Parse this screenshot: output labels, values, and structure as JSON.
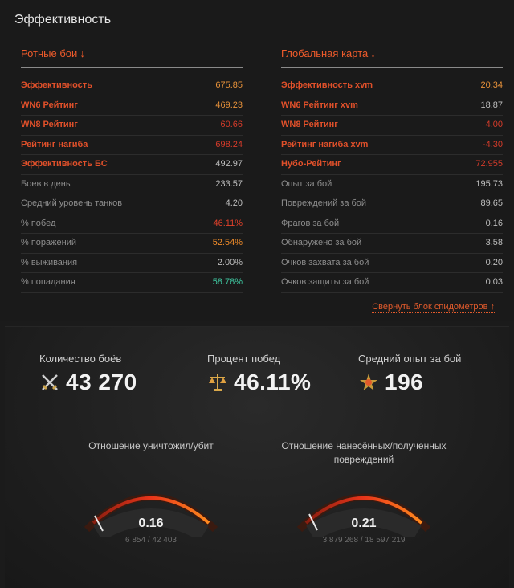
{
  "title": "Эффективность",
  "left": {
    "heading": "Ротные бои",
    "arrow": "↓",
    "rows": [
      {
        "label": "Эффективность",
        "value": "675.85",
        "hl": true,
        "color": "#e8923a"
      },
      {
        "label": "WN6 Рейтинг",
        "value": "469.23",
        "hl": true,
        "color": "#e8923a"
      },
      {
        "label": "WN8 Рейтинг",
        "value": "60.66",
        "hl": true,
        "color": "#d63b2a"
      },
      {
        "label": "Рейтинг нагиба",
        "value": "698.24",
        "hl": true,
        "color": "#d63b2a"
      },
      {
        "label": "Эффективность БС",
        "value": "492.97",
        "hl": true,
        "color": "#bdbdbd"
      },
      {
        "label": "Боев в день",
        "value": "233.57",
        "hl": false,
        "color": "#bdbdbd"
      },
      {
        "label": "Средний уровень танков",
        "value": "4.20",
        "hl": false,
        "color": "#bdbdbd"
      },
      {
        "label": "% побед",
        "value": "46.11%",
        "hl": false,
        "color": "#e0402a"
      },
      {
        "label": "% поражений",
        "value": "52.54%",
        "hl": false,
        "color": "#f08c2a"
      },
      {
        "label": "% выживания",
        "value": "2.00%",
        "hl": false,
        "color": "#bdbdbd"
      },
      {
        "label": "% попадания",
        "value": "58.78%",
        "hl": false,
        "color": "#3fc7a0"
      }
    ]
  },
  "right": {
    "heading": "Глобальная карта",
    "arrow": "↓",
    "rows": [
      {
        "label": "Эффективность xvm",
        "value": "20.34",
        "hl": true,
        "color": "#e8923a"
      },
      {
        "label": "WN6 Рейтинг xvm",
        "value": "18.87",
        "hl": true,
        "color": "#bdbdbd"
      },
      {
        "label": "WN8 Рейтинг",
        "value": "4.00",
        "hl": true,
        "color": "#d63b2a"
      },
      {
        "label": "Рейтинг нагиба xvm",
        "value": "-4.30",
        "hl": true,
        "color": "#d63b2a"
      },
      {
        "label": "Нубо-Рейтинг",
        "value": "72.955",
        "hl": true,
        "color": "#d63b2a"
      },
      {
        "label": "Опыт за бой",
        "value": "195.73",
        "hl": false,
        "color": "#bdbdbd"
      },
      {
        "label": "Повреждений за бой",
        "value": "89.65",
        "hl": false,
        "color": "#bdbdbd"
      },
      {
        "label": "Фрагов за бой",
        "value": "0.16",
        "hl": false,
        "color": "#bdbdbd"
      },
      {
        "label": "Обнаружено за бой",
        "value": "3.58",
        "hl": false,
        "color": "#bdbdbd"
      },
      {
        "label": "Очков захвата за бой",
        "value": "0.20",
        "hl": false,
        "color": "#bdbdbd"
      },
      {
        "label": "Очков защиты за бой",
        "value": "0.03",
        "hl": false,
        "color": "#bdbdbd"
      }
    ]
  },
  "collapse_link": "Свернуть блок спидометров ↑",
  "stats": [
    {
      "caption": "Количество боёв",
      "value": "43 270",
      "icon": "crossed-swords-icon"
    },
    {
      "caption": "Процент побед",
      "value": "46.11%",
      "icon": "scales-icon"
    },
    {
      "caption": "Средний опыт за бой",
      "value": "196",
      "icon": "star-burst-icon"
    }
  ],
  "gauges": [
    {
      "caption": "Отношение уничтожил/убит",
      "value": "0.16",
      "sub": "6 854 / 42 403",
      "level": 0.05
    },
    {
      "caption": "Отношение нанесённых/полученных повреждений",
      "value": "0.21",
      "sub": "3 879 268 / 18 597 219",
      "level": 0.07
    }
  ]
}
